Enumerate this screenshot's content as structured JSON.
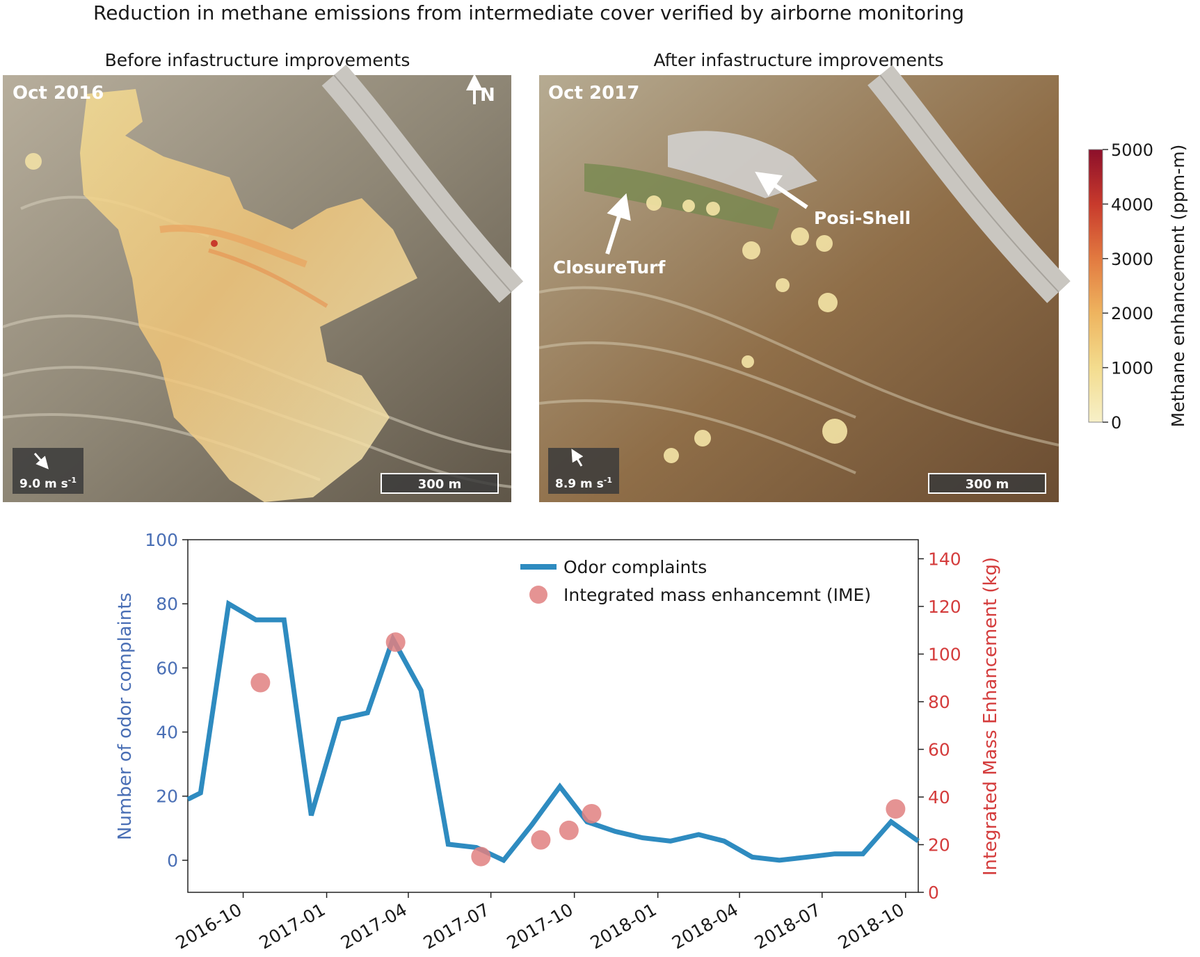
{
  "figure_title": "Reduction in methane emissions from intermediate cover verified by airborne monitoring",
  "panels": [
    {
      "title": "Before infastructure improvements",
      "date": "Oct 2016",
      "north_label": "N",
      "wind": "9.0 m s",
      "wind_sup": "-1",
      "wind_direction": "towards south-east",
      "scale_bar": "300 m"
    },
    {
      "title": "After infastructure improvements",
      "date": "Oct 2017",
      "wind": "8.9 m s",
      "wind_sup": "-1",
      "wind_direction": "towards north-west",
      "scale_bar": "300 m",
      "annotations": [
        "Posi-Shell",
        "ClosureTurf"
      ]
    }
  ],
  "colorbar": {
    "label": "Methane enhancement (ppm-m)",
    "ticks": [
      "0",
      "1000",
      "2000",
      "3000",
      "4000",
      "5000"
    ],
    "range": [
      0,
      5000
    ],
    "colors": [
      "#f7f0c8",
      "#f3dc8e",
      "#eeb45f",
      "#e27a40",
      "#c83a2c",
      "#8c0f2a"
    ]
  },
  "chart_data": {
    "type": "line",
    "x_ticks": [
      "2016-10",
      "2017-01",
      "2017-04",
      "2017-07",
      "2017-10",
      "2018-01",
      "2018-04",
      "2018-07",
      "2018-10"
    ],
    "y_left": {
      "label": "Number of odor complaints",
      "lim": [
        -10,
        100
      ],
      "ticks": [
        "0",
        "20",
        "40",
        "60",
        "80",
        "100"
      ],
      "color": "#4a6fb5"
    },
    "y_right": {
      "label": "Integrated Mass Enhancement (kg)",
      "lim": [
        0,
        148
      ],
      "ticks": [
        "0",
        "20",
        "40",
        "60",
        "80",
        "100",
        "120",
        "140"
      ],
      "color": "#d43c3c"
    },
    "x_range": [
      "2016-08-01",
      "2018-10-15"
    ],
    "series": [
      {
        "name": "Odor complaints",
        "type": "line",
        "axis": "left",
        "color": "#2e8bc0",
        "x": [
          "2016-08-01",
          "2016-08-15",
          "2016-09-15",
          "2016-10-15",
          "2016-11-15",
          "2016-12-15",
          "2017-01-15",
          "2017-02-15",
          "2017-03-15",
          "2017-04-15",
          "2017-05-15",
          "2017-06-15",
          "2017-07-15",
          "2017-08-15",
          "2017-09-15",
          "2017-10-15",
          "2017-11-15",
          "2017-12-15",
          "2018-01-15",
          "2018-02-15",
          "2018-03-15",
          "2018-04-15",
          "2018-05-15",
          "2018-06-15",
          "2018-07-15",
          "2018-08-15",
          "2018-09-15",
          "2018-10-15"
        ],
        "y": [
          19,
          21,
          80,
          75,
          75,
          14,
          44,
          46,
          69,
          53,
          5,
          4,
          0,
          11,
          23,
          12,
          9,
          7,
          6,
          8,
          6,
          1,
          0,
          1,
          2,
          2,
          12,
          6
        ]
      },
      {
        "name": "Integrated mass enhancemnt (IME)",
        "type": "scatter",
        "axis": "right",
        "color": "#e08080",
        "x": [
          "2016-10-20",
          "2017-03-18",
          "2017-06-20",
          "2017-08-25",
          "2017-09-25",
          "2017-10-20",
          "2018-09-20"
        ],
        "y": [
          88,
          105,
          15,
          22,
          26,
          33,
          35
        ]
      }
    ]
  }
}
